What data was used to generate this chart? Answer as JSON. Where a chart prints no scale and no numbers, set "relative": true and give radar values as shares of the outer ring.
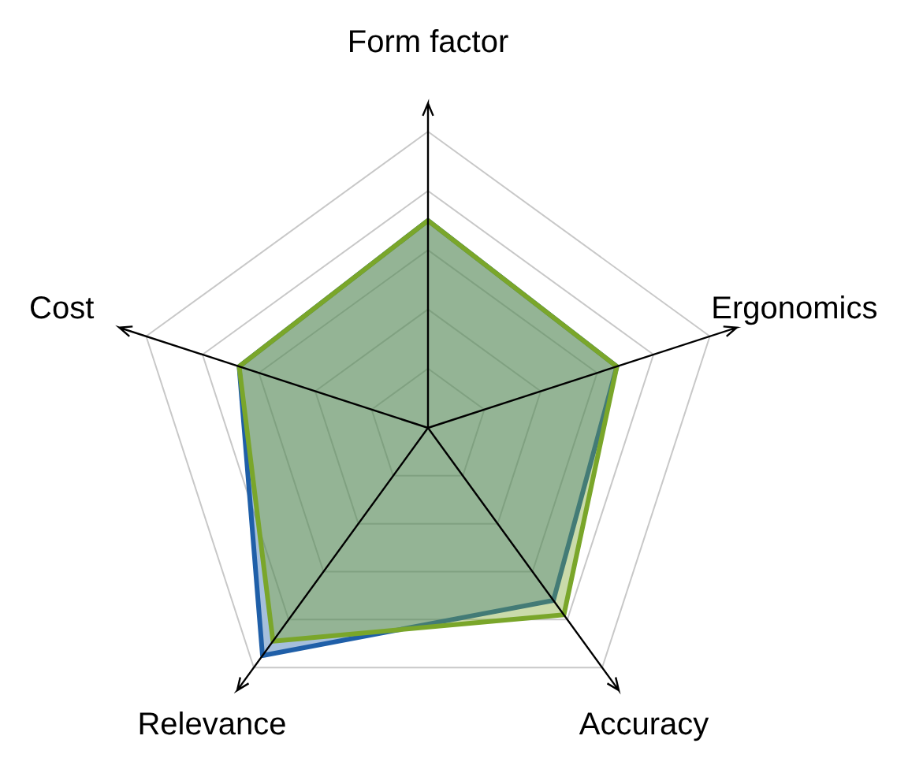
{
  "chart_data": {
    "type": "radar",
    "relative": true,
    "grid": true,
    "categories": [
      "Form factor",
      "Ergonomics",
      "Accuracy",
      "Relevance",
      "Cost"
    ],
    "series": [
      {
        "color": "#1f5fa8",
        "values": [
          0.7,
          0.67,
          0.72,
          0.95,
          0.67
        ]
      },
      {
        "color": "#7aa62a",
        "values": [
          0.7,
          0.67,
          0.78,
          0.89,
          0.67
        ]
      }
    ]
  }
}
